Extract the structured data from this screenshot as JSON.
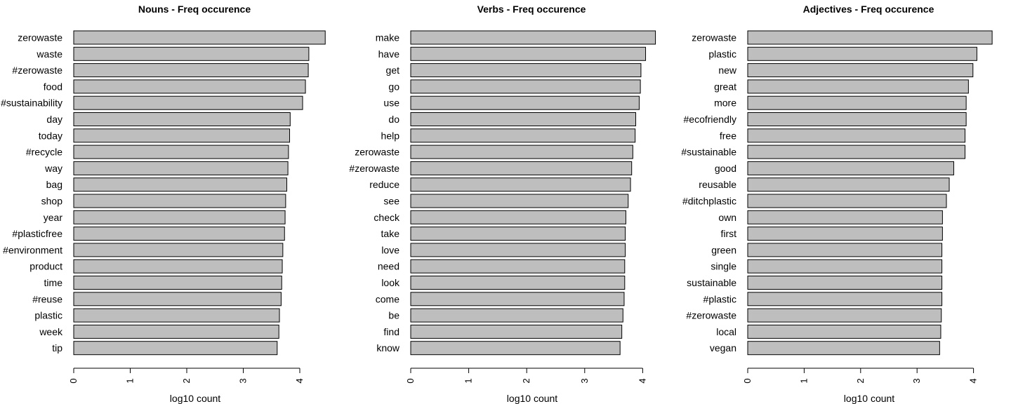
{
  "chart_data": [
    {
      "type": "bar",
      "orientation": "horizontal",
      "title": "Nouns - Freq occurence",
      "xlabel": "log10 count",
      "ylabel": "",
      "xlim": [
        0,
        4.5
      ],
      "xticks": [
        "0",
        "1",
        "2",
        "3",
        "4"
      ],
      "grid": false,
      "bar_color": "#bebebe",
      "categories": [
        "zerowaste",
        "waste",
        "#zerowaste",
        "food",
        "#sustainability",
        "day",
        "today",
        "#recycle",
        "way",
        "bag",
        "shop",
        "year",
        "#plasticfree",
        "#environment",
        "product",
        "time",
        "#reuse",
        "plastic",
        "week",
        "tip"
      ],
      "values": [
        4.45,
        4.16,
        4.15,
        4.1,
        4.05,
        3.83,
        3.82,
        3.8,
        3.79,
        3.77,
        3.75,
        3.74,
        3.73,
        3.7,
        3.69,
        3.68,
        3.67,
        3.64,
        3.63,
        3.6
      ]
    },
    {
      "type": "bar",
      "orientation": "horizontal",
      "title": "Verbs - Freq occurence",
      "xlabel": "log10 count",
      "ylabel": "",
      "xlim": [
        0,
        4.25
      ],
      "xticks": [
        "0",
        "1",
        "2",
        "3",
        "4"
      ],
      "grid": false,
      "bar_color": "#bebebe",
      "categories": [
        "make",
        "have",
        "get",
        "go",
        "use",
        "do",
        "help",
        "zerowaste",
        "#zerowaste",
        "reduce",
        "see",
        "check",
        "take",
        "love",
        "need",
        "look",
        "come",
        "be",
        "find",
        "know"
      ],
      "values": [
        4.22,
        4.05,
        3.97,
        3.96,
        3.94,
        3.88,
        3.87,
        3.83,
        3.81,
        3.79,
        3.75,
        3.71,
        3.7,
        3.7,
        3.69,
        3.69,
        3.68,
        3.66,
        3.64,
        3.61
      ]
    },
    {
      "type": "bar",
      "orientation": "horizontal",
      "title": "Adjectives - Freq occurence",
      "xlabel": "log10 count",
      "ylabel": "",
      "xlim": [
        0,
        4.35
      ],
      "xticks": [
        "0",
        "1",
        "2",
        "3",
        "4"
      ],
      "grid": false,
      "bar_color": "#bebebe",
      "categories": [
        "zerowaste",
        "plastic",
        "new",
        "great",
        "more",
        "#ecofriendly",
        "free",
        "#sustainable",
        "good",
        "reusable",
        "#ditchplastic",
        "own",
        "first",
        "green",
        "single",
        "sustainable",
        "#plastic",
        "#zerowaste",
        "local",
        "vegan"
      ],
      "values": [
        4.33,
        4.06,
        3.99,
        3.91,
        3.87,
        3.87,
        3.85,
        3.85,
        3.65,
        3.57,
        3.52,
        3.45,
        3.45,
        3.44,
        3.44,
        3.44,
        3.44,
        3.43,
        3.42,
        3.4
      ]
    }
  ]
}
